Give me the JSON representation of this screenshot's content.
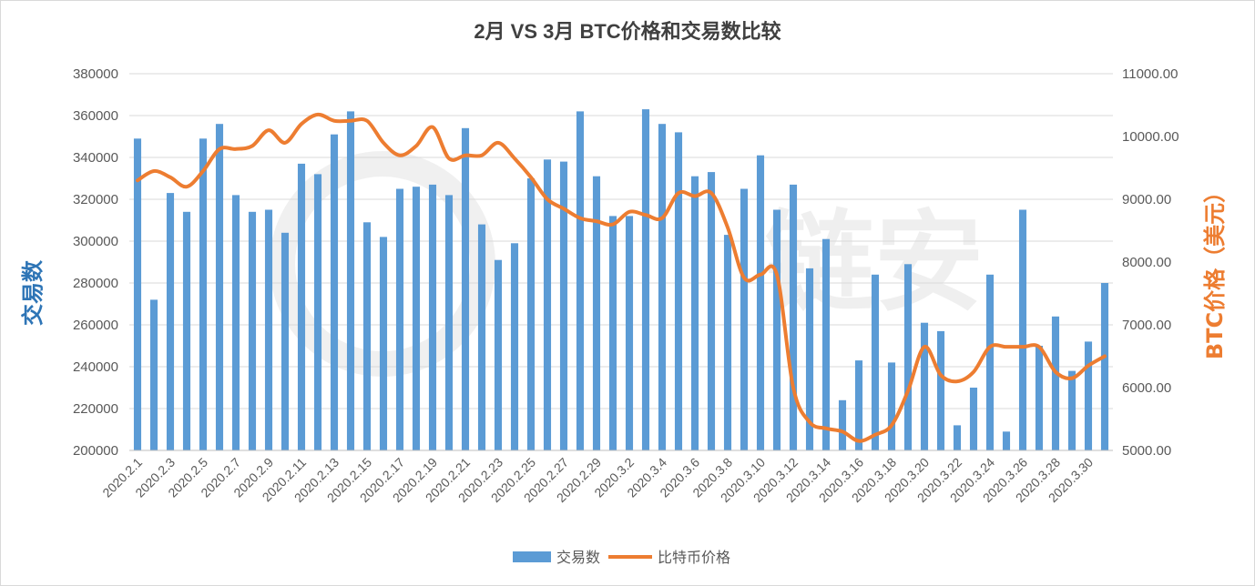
{
  "chart_data": {
    "type": "bar+line",
    "title": "2月 VS 3月 BTC价格和交易数比较",
    "ylabel_left": "交易数",
    "ylabel_right": "BTC价格（美元）",
    "ylim_left": [
      200000,
      380000
    ],
    "ylim_right": [
      5000,
      11000
    ],
    "yticks_left": [
      "380000",
      "360000",
      "340000",
      "320000",
      "300000",
      "280000",
      "260000",
      "240000",
      "220000",
      "200000"
    ],
    "yticks_right": [
      "11000.00",
      "10000.00",
      "9000.00",
      "8000.00",
      "7000.00",
      "6000.00",
      "5000.00"
    ],
    "categories": [
      "2020.2.1",
      "2020.2.2",
      "2020.2.3",
      "2020.2.4",
      "2020.2.5",
      "2020.2.6",
      "2020.2.7",
      "2020.2.8",
      "2020.2.9",
      "2020.2.10",
      "2020.2.11",
      "2020.2.12",
      "2020.2.13",
      "2020.2.14",
      "2020.2.15",
      "2020.2.16",
      "2020.2.17",
      "2020.2.18",
      "2020.2.19",
      "2020.2.20",
      "2020.2.21",
      "2020.2.22",
      "2020.2.23",
      "2020.2.24",
      "2020.2.25",
      "2020.2.26",
      "2020.2.27",
      "2020.2.28",
      "2020.2.29",
      "2020.3.1",
      "2020.3.2",
      "2020.3.3",
      "2020.3.4",
      "2020.3.5",
      "2020.3.6",
      "2020.3.7",
      "2020.3.8",
      "2020.3.9",
      "2020.3.10",
      "2020.3.11",
      "2020.3.12",
      "2020.3.13",
      "2020.3.14",
      "2020.3.15",
      "2020.3.16",
      "2020.3.17",
      "2020.3.18",
      "2020.3.19",
      "2020.3.20",
      "2020.3.21",
      "2020.3.22",
      "2020.3.23",
      "2020.3.24",
      "2020.3.25",
      "2020.3.26",
      "2020.3.27",
      "2020.3.28",
      "2020.3.29",
      "2020.3.30",
      "2020.3.31"
    ],
    "x_tick_labels": [
      "2020.2.1",
      "",
      "2020.2.3",
      "",
      "2020.2.5",
      "",
      "2020.2.7",
      "",
      "2020.2.9",
      "",
      "2020.2.11",
      "",
      "2020.2.13",
      "",
      "2020.2.15",
      "",
      "2020.2.17",
      "",
      "2020.2.19",
      "",
      "2020.2.21",
      "",
      "2020.2.23",
      "",
      "2020.2.25",
      "",
      "2020.2.27",
      "",
      "2020.2.29",
      "",
      "2020.3.2",
      "",
      "2020.3.4",
      "",
      "2020.3.6",
      "",
      "2020.3.8",
      "",
      "2020.3.10",
      "",
      "2020.3.12",
      "",
      "2020.3.14",
      "",
      "2020.3.16",
      "",
      "2020.3.18",
      "",
      "2020.3.20",
      "",
      "2020.3.22",
      "",
      "2020.3.24",
      "",
      "2020.3.26",
      "",
      "2020.3.28",
      "",
      "2020.3.30",
      ""
    ],
    "series": [
      {
        "name": "交易数",
        "type": "bar",
        "axis": "left",
        "color": "#5B9BD5",
        "values": [
          349000,
          272000,
          323000,
          314000,
          349000,
          356000,
          322000,
          314000,
          315000,
          304000,
          337000,
          332000,
          351000,
          362000,
          309000,
          302000,
          325000,
          326000,
          327000,
          322000,
          354000,
          308000,
          291000,
          299000,
          330000,
          339000,
          338000,
          362000,
          331000,
          312000,
          312000,
          363000,
          356000,
          352000,
          331000,
          333000,
          303000,
          325000,
          341000,
          315000,
          327000,
          287000,
          301000,
          224000,
          243000,
          284000,
          242000,
          289000,
          261000,
          257000,
          212000,
          230000,
          284000,
          209000,
          315000,
          250000,
          264000,
          238000,
          252000,
          280000
        ]
      },
      {
        "name": "比特币价格",
        "type": "line",
        "axis": "right",
        "color": "#ED7D31",
        "values": [
          9300,
          9450,
          9350,
          9200,
          9450,
          9800,
          9800,
          9850,
          10100,
          9900,
          10200,
          10350,
          10250,
          10250,
          10250,
          9900,
          9700,
          9850,
          10150,
          9650,
          9700,
          9700,
          9900,
          9650,
          9350,
          9000,
          8850,
          8700,
          8650,
          8600,
          8800,
          8750,
          8700,
          9100,
          9050,
          9100,
          8550,
          7750,
          7800,
          7800,
          6000,
          5450,
          5350,
          5300,
          5150,
          5250,
          5400,
          5950,
          6650,
          6200,
          6100,
          6250,
          6650,
          6650,
          6650,
          6650,
          6250,
          6150,
          6350,
          6500
        ]
      }
    ],
    "legend_position": "bottom",
    "grid": true,
    "watermark": "链安"
  }
}
